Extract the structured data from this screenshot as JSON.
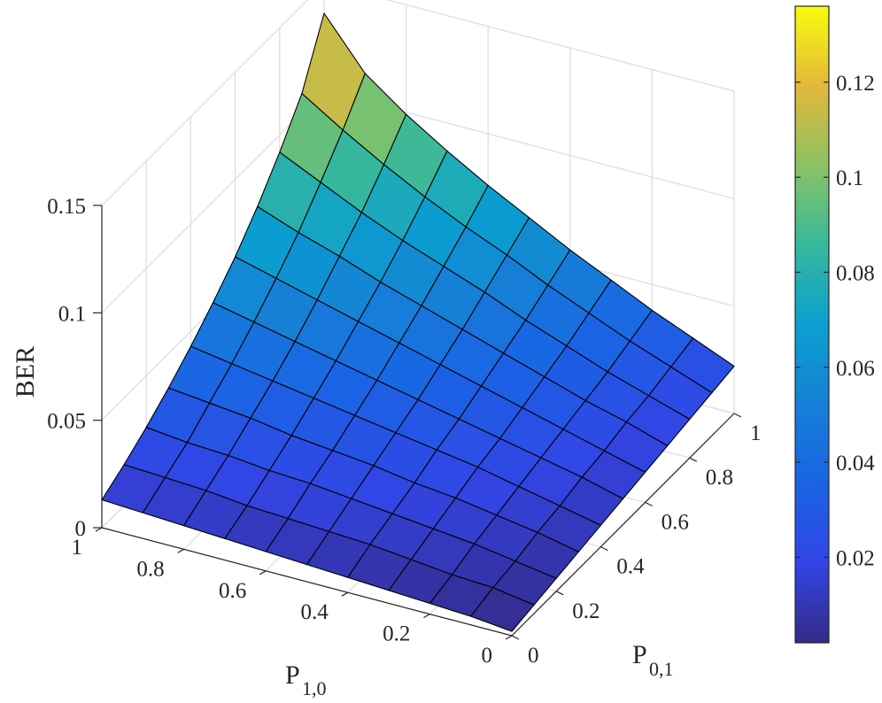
{
  "chart_data": {
    "type": "surface3d",
    "xlabel": {
      "main": "P",
      "sub": "1,0"
    },
    "ylabel": {
      "main": "P",
      "sub": "0,1"
    },
    "zlabel": "BER",
    "xlim": [
      0,
      1
    ],
    "ylim": [
      0,
      1
    ],
    "zlim": [
      0,
      0.15
    ],
    "x_ticks": [
      "0",
      "0.2",
      "0.4",
      "0.6",
      "0.8",
      "1"
    ],
    "x_tick_values": [
      0,
      0.2,
      0.4,
      0.6,
      0.8,
      1
    ],
    "y_ticks": [
      "0",
      "0.2",
      "0.4",
      "0.6",
      "0.8",
      "1"
    ],
    "y_tick_values": [
      0,
      0.2,
      0.4,
      0.6,
      0.8,
      1
    ],
    "z_ticks": [
      "0",
      "0.05",
      "0.1",
      "0.15"
    ],
    "z_tick_values": [
      0,
      0.05,
      0.1,
      0.15
    ],
    "grid": true,
    "colormap": "parula",
    "colorbar": {
      "range": [
        0.002,
        0.136
      ],
      "ticks": [
        "0.02",
        "0.04",
        "0.06",
        "0.08",
        "0.1",
        "0.12"
      ],
      "tick_values": [
        0.02,
        0.04,
        0.06,
        0.08,
        0.1,
        0.12
      ],
      "placement": "right"
    },
    "x": [
      0,
      0.1,
      0.2,
      0.3,
      0.4,
      0.5,
      0.6,
      0.7,
      0.8,
      0.9,
      1.0
    ],
    "y": [
      0,
      0.1,
      0.2,
      0.3,
      0.4,
      0.5,
      0.6,
      0.7,
      0.8,
      0.9,
      1.0
    ],
    "z_note": "z rows indexed by P_1,0 (x), columns by P_0,1 (y)",
    "z": [
      [
        0.002,
        0.004,
        0.006,
        0.008,
        0.01,
        0.012,
        0.014,
        0.016,
        0.018,
        0.02,
        0.022
      ],
      [
        0.004,
        0.007,
        0.009,
        0.012,
        0.014,
        0.017,
        0.019,
        0.022,
        0.024,
        0.027,
        0.03
      ],
      [
        0.005,
        0.008,
        0.012,
        0.015,
        0.018,
        0.021,
        0.024,
        0.027,
        0.03,
        0.034,
        0.038
      ],
      [
        0.006,
        0.01,
        0.014,
        0.018,
        0.022,
        0.025,
        0.029,
        0.033,
        0.037,
        0.042,
        0.047
      ],
      [
        0.007,
        0.012,
        0.016,
        0.02,
        0.025,
        0.029,
        0.034,
        0.039,
        0.044,
        0.05,
        0.056
      ],
      [
        0.008,
        0.013,
        0.018,
        0.023,
        0.028,
        0.033,
        0.039,
        0.045,
        0.052,
        0.059,
        0.066
      ],
      [
        0.009,
        0.014,
        0.02,
        0.025,
        0.031,
        0.037,
        0.044,
        0.051,
        0.059,
        0.067,
        0.076
      ],
      [
        0.01,
        0.015,
        0.021,
        0.027,
        0.034,
        0.041,
        0.049,
        0.057,
        0.066,
        0.076,
        0.087
      ],
      [
        0.011,
        0.017,
        0.023,
        0.03,
        0.037,
        0.045,
        0.054,
        0.064,
        0.074,
        0.086,
        0.099
      ],
      [
        0.012,
        0.018,
        0.024,
        0.032,
        0.04,
        0.049,
        0.059,
        0.07,
        0.083,
        0.097,
        0.113
      ],
      [
        0.013,
        0.019,
        0.026,
        0.034,
        0.043,
        0.053,
        0.064,
        0.077,
        0.092,
        0.109,
        0.136
      ]
    ]
  }
}
